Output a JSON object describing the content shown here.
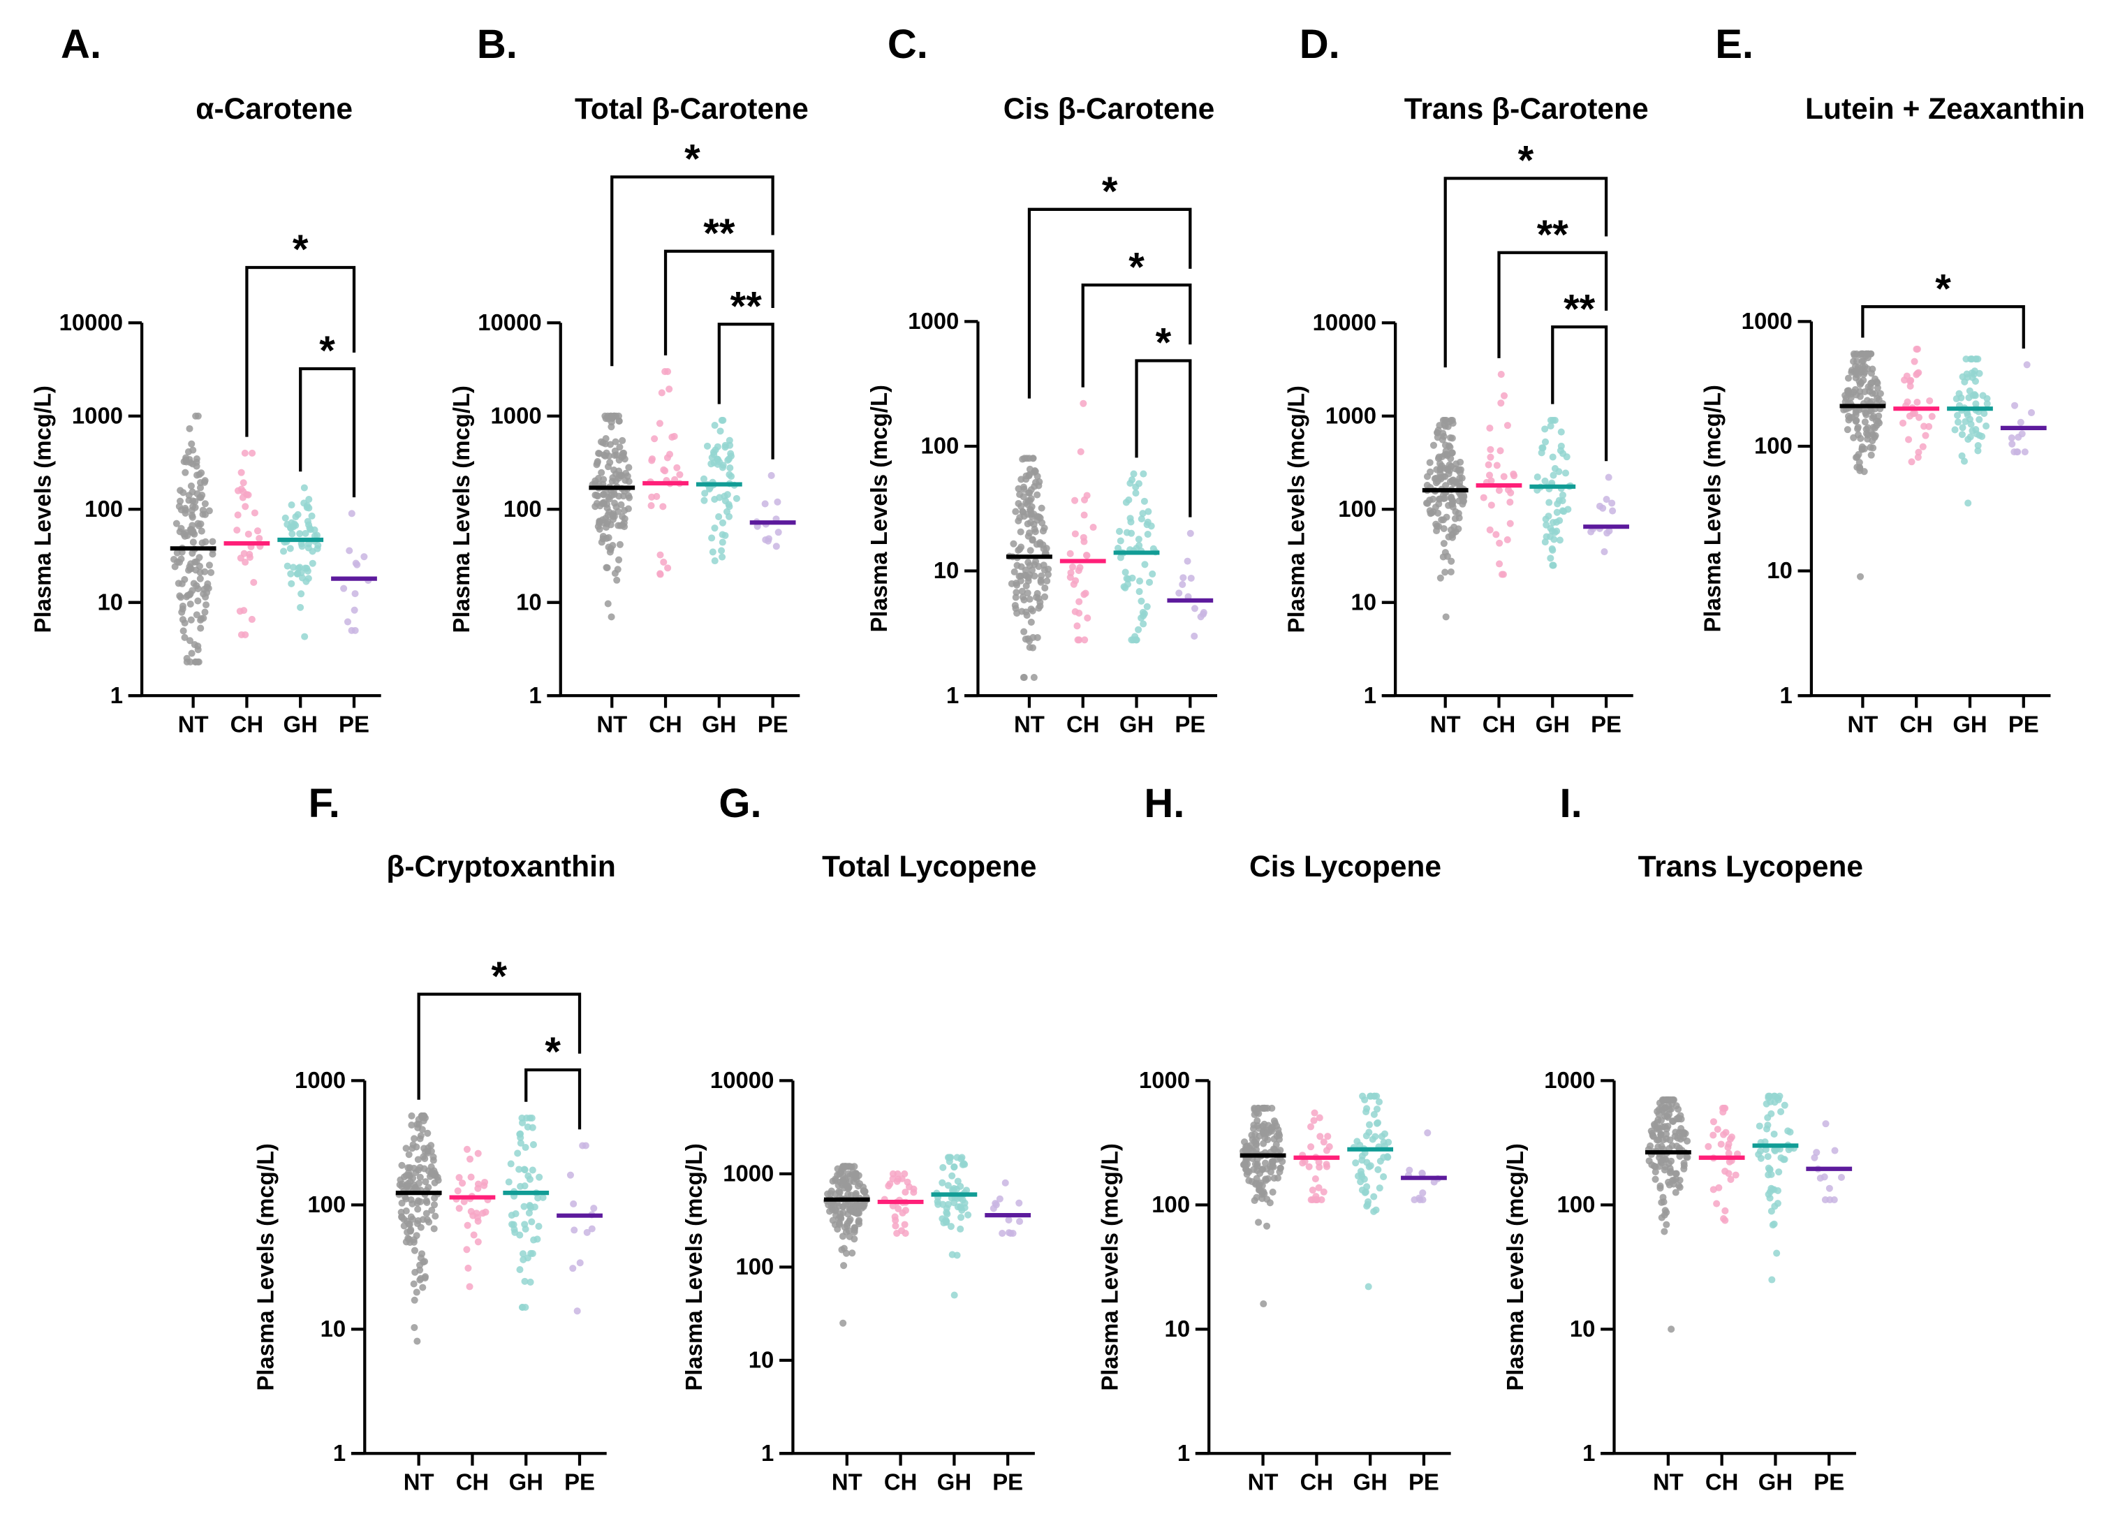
{
  "chart_data": [
    {
      "letter": "A.",
      "title": "α-Carotene",
      "type": "scatter",
      "scale": "log",
      "ylim": [
        1,
        10000
      ],
      "yticks": [
        "1",
        "10",
        "100",
        "1000",
        "10000"
      ],
      "ylabel": "Plasma Levels (mcg/L)",
      "categories": [
        "NT",
        "CH",
        "GH",
        "PE"
      ],
      "groups": [
        {
          "median": 38,
          "min": 2.3,
          "max": 1000,
          "n": 150
        },
        {
          "median": 43,
          "min": 4.5,
          "max": 400,
          "n": 30
        },
        {
          "median": 47,
          "min": 4.3,
          "max": 170,
          "n": 60
        },
        {
          "median": 18,
          "min": 5,
          "max": 90,
          "n": 12
        }
      ],
      "significance": [
        {
          "from": "CH",
          "to": "PE",
          "label": "*"
        },
        {
          "from": "GH",
          "to": "PE",
          "label": "*"
        }
      ]
    },
    {
      "letter": "B.",
      "title": "Total β-Carotene",
      "type": "scatter",
      "scale": "log",
      "ylim": [
        1,
        10000
      ],
      "yticks": [
        "1",
        "10",
        "100",
        "1000",
        "10000"
      ],
      "ylabel": "Plasma Levels (mcg/L)",
      "categories": [
        "NT",
        "CH",
        "GH",
        "PE"
      ],
      "groups": [
        {
          "median": 170,
          "min": 7,
          "max": 1000,
          "n": 150
        },
        {
          "median": 190,
          "min": 20,
          "max": 3000,
          "n": 30
        },
        {
          "median": 185,
          "min": 28,
          "max": 900,
          "n": 60
        },
        {
          "median": 72,
          "min": 40,
          "max": 230,
          "n": 12
        }
      ],
      "significance": [
        {
          "from": "NT",
          "to": "PE",
          "label": "*"
        },
        {
          "from": "CH",
          "to": "PE",
          "label": "**"
        },
        {
          "from": "GH",
          "to": "PE",
          "label": "**"
        }
      ]
    },
    {
      "letter": "C.",
      "title": "Cis β-Carotene",
      "type": "scatter",
      "scale": "log",
      "ylim": [
        1,
        1000
      ],
      "yticks": [
        "1",
        "10",
        "100",
        "1000"
      ],
      "ylabel": "Plasma Levels (mcg/L)",
      "categories": [
        "NT",
        "CH",
        "GH",
        "PE"
      ],
      "groups": [
        {
          "median": 13,
          "min": 1.4,
          "max": 80,
          "n": 150
        },
        {
          "median": 12,
          "min": 2.8,
          "max": 220,
          "n": 30
        },
        {
          "median": 14,
          "min": 2.8,
          "max": 60,
          "n": 60
        },
        {
          "median": 5.8,
          "min": 3,
          "max": 20,
          "n": 12
        }
      ],
      "significance": [
        {
          "from": "NT",
          "to": "PE",
          "label": "*"
        },
        {
          "from": "CH",
          "to": "PE",
          "label": "*"
        },
        {
          "from": "GH",
          "to": "PE",
          "label": "*"
        }
      ]
    },
    {
      "letter": "D.",
      "title": "Trans β-Carotene",
      "type": "scatter",
      "scale": "log",
      "ylim": [
        1,
        10000
      ],
      "yticks": [
        "1",
        "10",
        "100",
        "1000",
        "10000"
      ],
      "ylabel": "Plasma Levels (mcg/L)",
      "categories": [
        "NT",
        "CH",
        "GH",
        "PE"
      ],
      "groups": [
        {
          "median": 160,
          "min": 7,
          "max": 900,
          "n": 150
        },
        {
          "median": 180,
          "min": 20,
          "max": 2800,
          "n": 30
        },
        {
          "median": 175,
          "min": 25,
          "max": 900,
          "n": 60
        },
        {
          "median": 65,
          "min": 35,
          "max": 220,
          "n": 12
        }
      ],
      "significance": [
        {
          "from": "NT",
          "to": "PE",
          "label": "*"
        },
        {
          "from": "CH",
          "to": "PE",
          "label": "**"
        },
        {
          "from": "GH",
          "to": "PE",
          "label": "**"
        }
      ]
    },
    {
      "letter": "E.",
      "title": "Lutein + Zeaxanthin",
      "type": "scatter",
      "scale": "log",
      "ylim": [
        1,
        1000
      ],
      "yticks": [
        "1",
        "10",
        "100",
        "1000"
      ],
      "ylabel": "Plasma Levels (mcg/L)",
      "categories": [
        "NT",
        "CH",
        "GH",
        "PE"
      ],
      "groups": [
        {
          "median": 210,
          "min": 9,
          "max": 550,
          "n": 150
        },
        {
          "median": 200,
          "min": 75,
          "max": 600,
          "n": 30
        },
        {
          "median": 200,
          "min": 35,
          "max": 500,
          "n": 60
        },
        {
          "median": 140,
          "min": 90,
          "max": 450,
          "n": 12
        }
      ],
      "significance": [
        {
          "from": "NT",
          "to": "PE",
          "label": "*"
        }
      ]
    },
    {
      "letter": "F.",
      "title": "β-Cryptoxanthin",
      "type": "scatter",
      "scale": "log",
      "ylim": [
        1,
        1000
      ],
      "yticks": [
        "1",
        "10",
        "100",
        "1000"
      ],
      "ylabel": "Plasma Levels (mcg/L)",
      "categories": [
        "NT",
        "CH",
        "GH",
        "PE"
      ],
      "groups": [
        {
          "median": 125,
          "min": 8,
          "max": 520,
          "n": 150
        },
        {
          "median": 115,
          "min": 22,
          "max": 280,
          "n": 30
        },
        {
          "median": 125,
          "min": 15,
          "max": 500,
          "n": 60
        },
        {
          "median": 82,
          "min": 14,
          "max": 300,
          "n": 12
        }
      ],
      "significance": [
        {
          "from": "NT",
          "to": "PE",
          "label": "*"
        },
        {
          "from": "GH",
          "to": "PE",
          "label": "*"
        }
      ]
    },
    {
      "letter": "G.",
      "title": "Total Lycopene",
      "type": "scatter",
      "scale": "log",
      "ylim": [
        1,
        10000
      ],
      "yticks": [
        "1",
        "10",
        "100",
        "1000",
        "10000"
      ],
      "ylabel": "Plasma Levels (mcg/L)",
      "categories": [
        "NT",
        "CH",
        "GH",
        "PE"
      ],
      "groups": [
        {
          "median": 530,
          "min": 25,
          "max": 1200,
          "n": 150
        },
        {
          "median": 500,
          "min": 230,
          "max": 1000,
          "n": 30
        },
        {
          "median": 600,
          "min": 50,
          "max": 1500,
          "n": 60
        },
        {
          "median": 360,
          "min": 230,
          "max": 800,
          "n": 12
        }
      ],
      "significance": []
    },
    {
      "letter": "H.",
      "title": "Cis Lycopene",
      "type": "scatter",
      "scale": "log",
      "ylim": [
        1,
        1000
      ],
      "yticks": [
        "1",
        "10",
        "100",
        "1000"
      ],
      "ylabel": "Plasma Levels (mcg/L)",
      "categories": [
        "NT",
        "CH",
        "GH",
        "PE"
      ],
      "groups": [
        {
          "median": 250,
          "min": 16,
          "max": 600,
          "n": 150
        },
        {
          "median": 240,
          "min": 110,
          "max": 550,
          "n": 30
        },
        {
          "median": 280,
          "min": 22,
          "max": 750,
          "n": 60
        },
        {
          "median": 165,
          "min": 110,
          "max": 380,
          "n": 12
        }
      ],
      "significance": []
    },
    {
      "letter": "I.",
      "title": "Trans Lycopene",
      "type": "scatter",
      "scale": "log",
      "ylim": [
        1,
        1000
      ],
      "yticks": [
        "1",
        "10",
        "100",
        "1000"
      ],
      "ylabel": "Plasma Levels (mcg/L)",
      "categories": [
        "NT",
        "CH",
        "GH",
        "PE"
      ],
      "groups": [
        {
          "median": 265,
          "min": 10,
          "max": 700,
          "n": 150
        },
        {
          "median": 240,
          "min": 75,
          "max": 600,
          "n": 30
        },
        {
          "median": 300,
          "min": 25,
          "max": 750,
          "n": 60
        },
        {
          "median": 195,
          "min": 110,
          "max": 450,
          "n": 12
        }
      ],
      "significance": []
    }
  ],
  "colors": {
    "NT": {
      "median": "#000000",
      "points": "#9a9a9a"
    },
    "CH": {
      "median": "#ff1f78",
      "points": "#f7a6c6"
    },
    "GH": {
      "median": "#119c95",
      "points": "#94d6d1"
    },
    "PE": {
      "median": "#5c1a9c",
      "points": "#c9b5e2"
    }
  }
}
